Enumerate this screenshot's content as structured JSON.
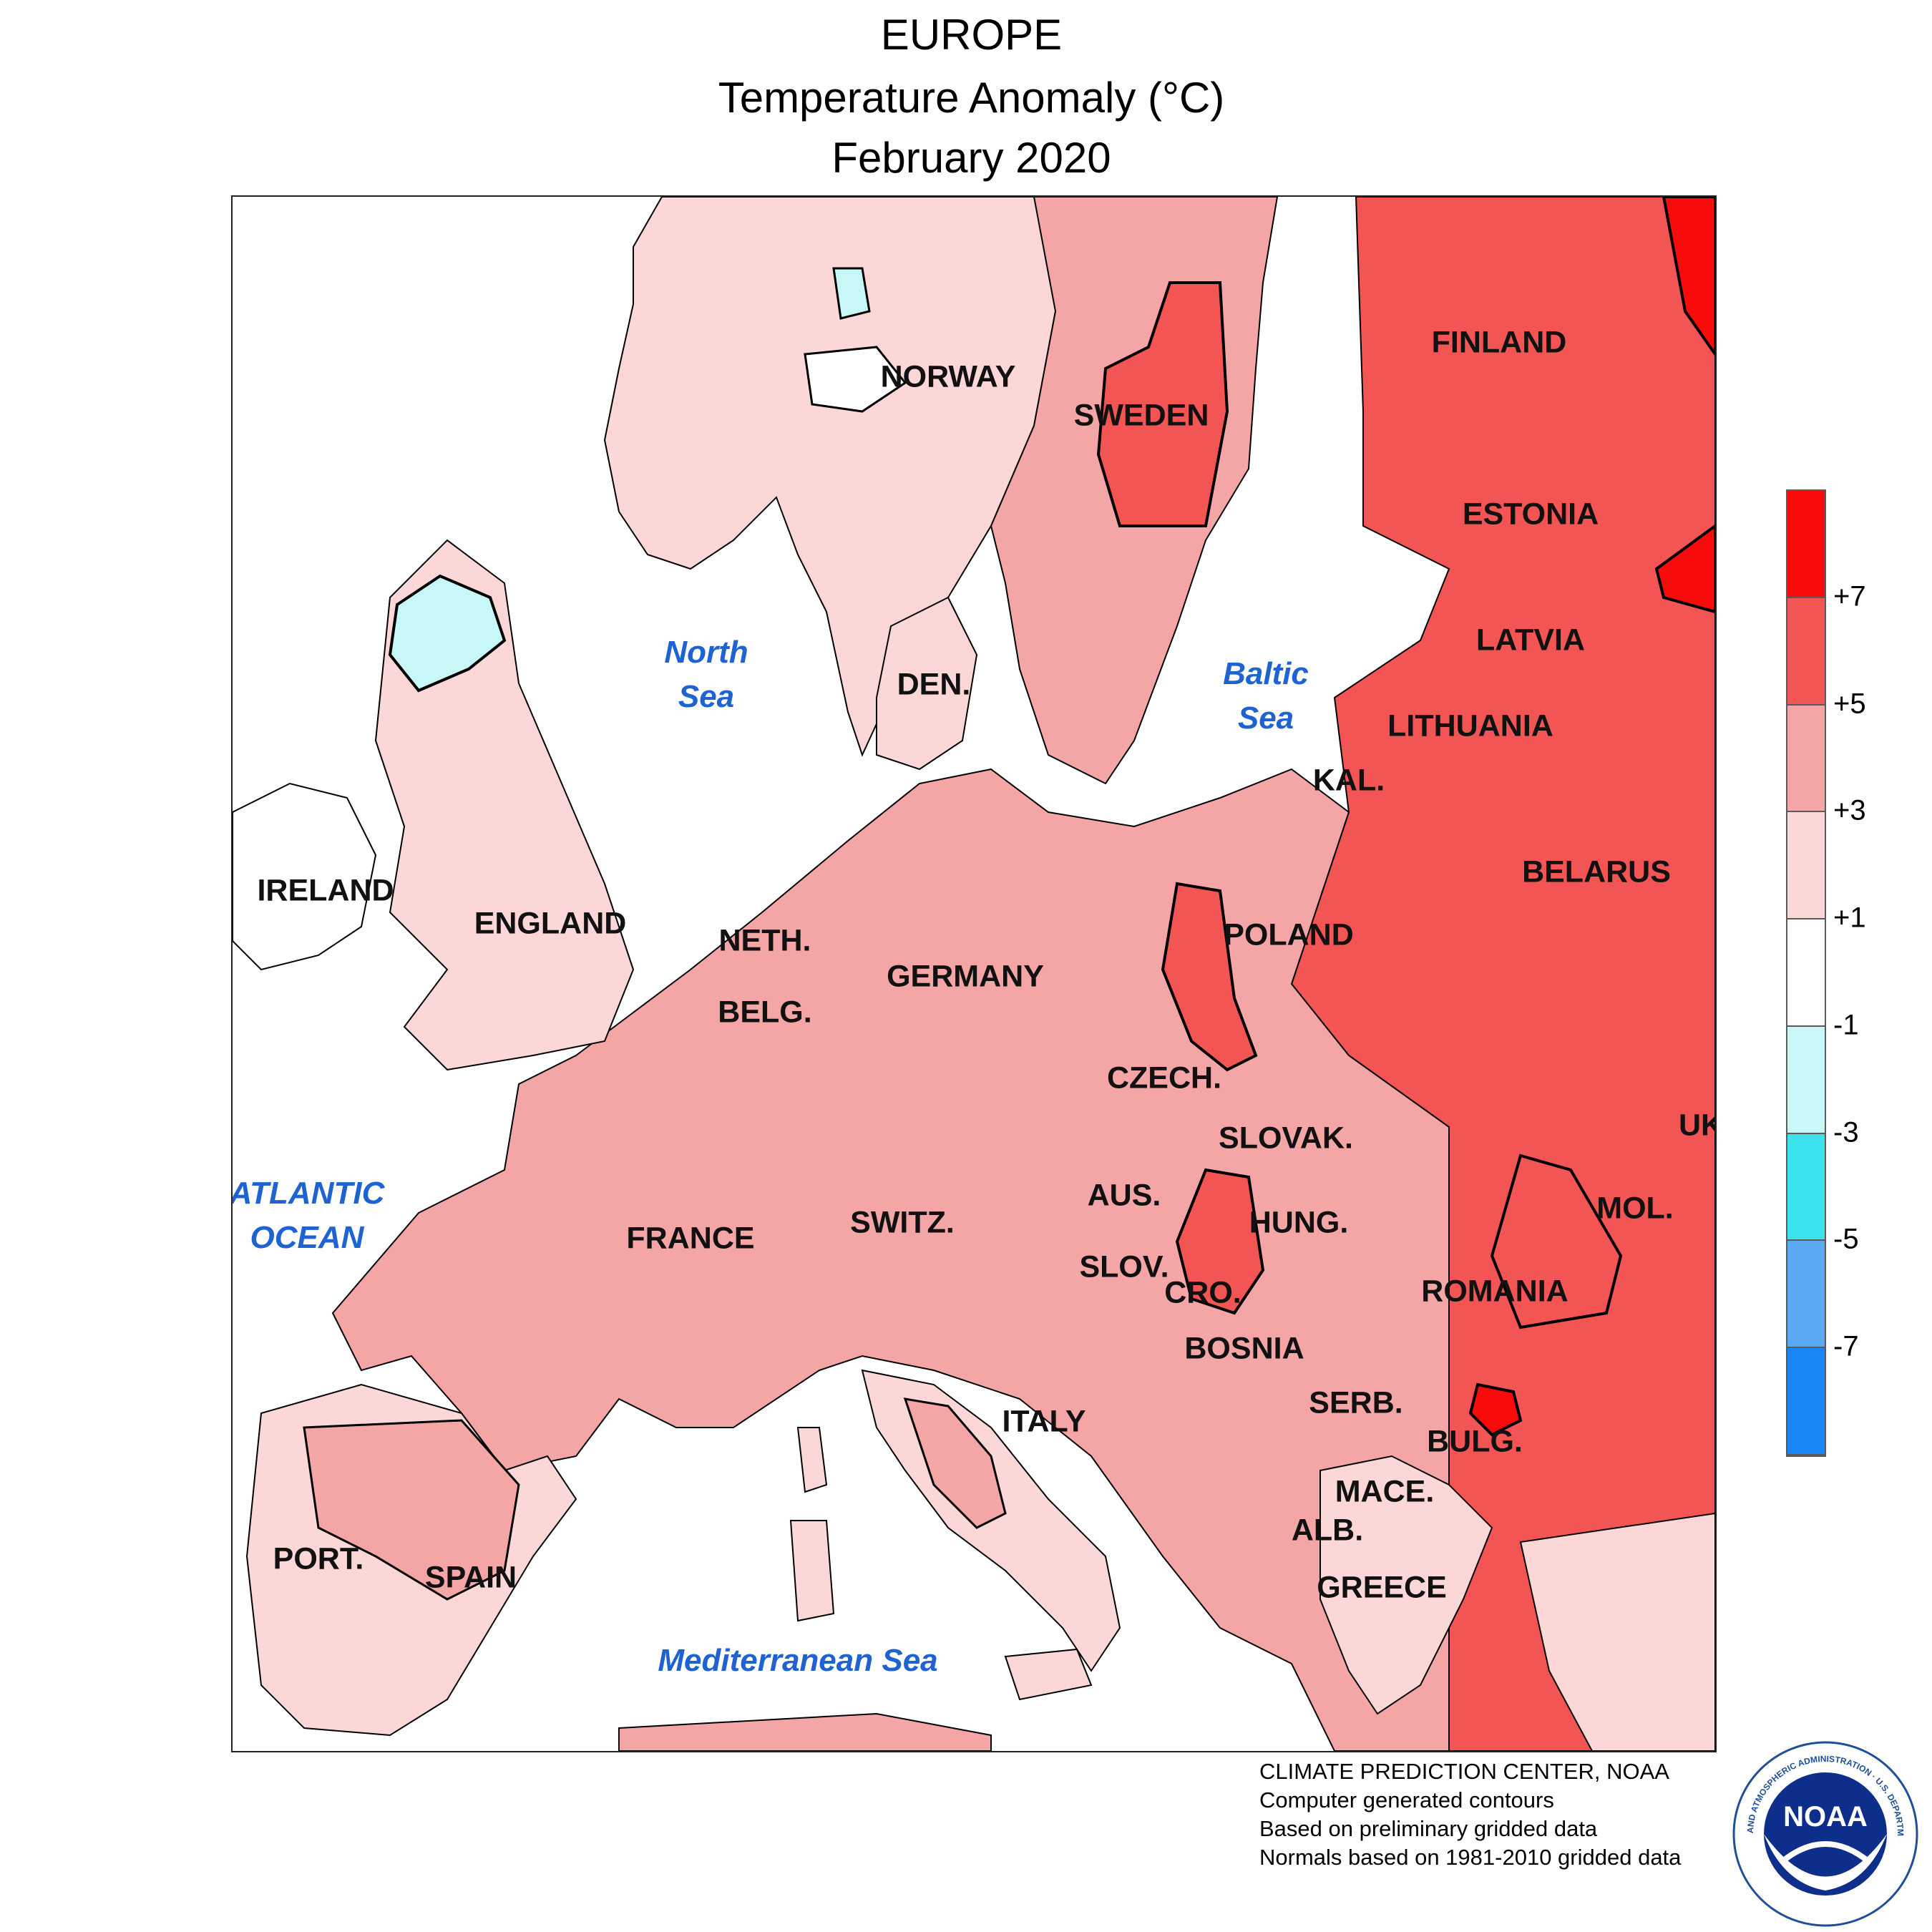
{
  "header": {
    "region": "EUROPE",
    "metric": "Temperature Anomaly (°C)",
    "period": "February 2020"
  },
  "colors": {
    "anomaly_1_3": "#fbd7d7",
    "anomaly_3_5": "#f4a6a6",
    "anomaly_5_7": "#f25553",
    "anomaly_gt7": "#fa0b0b",
    "anomaly_m1_m3": "#c8f7f8",
    "contour": "#000000",
    "sea_label": "#1f63d3"
  },
  "map": {
    "countries": [
      "FINLAND",
      "NORWAY",
      "SWEDEN",
      "ESTONIA",
      "LATVIA",
      "DEN.",
      "LITHUANIA",
      "KAL.",
      "BELARUS",
      "IRELAND",
      "ENGLAND",
      "NETH.",
      "POLAND",
      "GERMANY",
      "BELG.",
      "CZECH.",
      "SLOVAK.",
      "UK",
      "AUS.",
      "SWITZ.",
      "HUNG.",
      "MOL.",
      "FRANCE",
      "SLOV.",
      "CRO.",
      "ROMANIA",
      "BOSNIA",
      "SERB.",
      "ITALY",
      "BULG.",
      "MACE.",
      "ALB.",
      "PORT.",
      "SPAIN",
      "GREECE"
    ],
    "seas": [
      "North\nSea",
      "Baltic\nSea",
      "ATLANTIC\nOCEAN",
      "Mediterranean Sea"
    ]
  },
  "legend": {
    "bands": [
      "#fa0b0b",
      "#f25553",
      "#f4a6a6",
      "#fbd7d7",
      "#ffffff",
      "#c8f7f8",
      "#3de3ec",
      "#5aa8f2",
      "#1a85f7"
    ],
    "ticks": [
      "+7",
      "+5",
      "+3",
      "+1",
      "-1",
      "-3",
      "-5",
      "-7"
    ]
  },
  "credits": [
    "CLIMATE PREDICTION CENTER, NOAA",
    "Computer generated contours",
    "Based on preliminary gridded data",
    "Normals based on 1981-2010 gridded data"
  ],
  "logo": {
    "icon": "noaa-logo",
    "mark": "NOAA",
    "ring_text": "NATIONAL OCEANIC AND ATMOSPHERIC ADMINISTRATION · U.S. DEPARTMENT OF COMMERCE"
  }
}
